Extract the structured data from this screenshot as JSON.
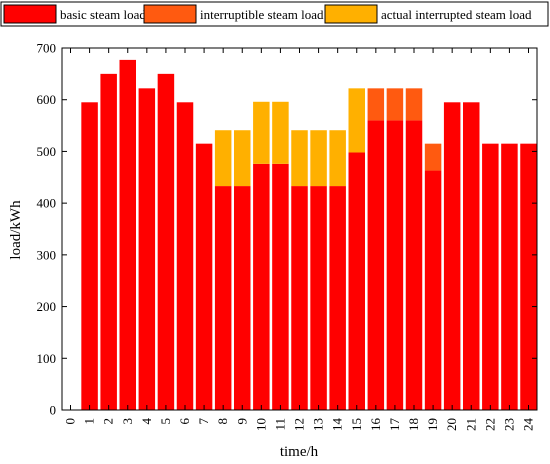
{
  "chart_data": {
    "type": "bar",
    "stacked": true,
    "title": "",
    "xlabel": "time/h",
    "ylabel": "load/kWh",
    "ylim": [
      0,
      700
    ],
    "yticks": [
      0,
      100,
      200,
      300,
      400,
      500,
      600,
      700
    ],
    "xticks": [
      0,
      1,
      2,
      3,
      4,
      5,
      6,
      7,
      8,
      9,
      10,
      11,
      12,
      13,
      14,
      15,
      16,
      17,
      18,
      19,
      20,
      21,
      22,
      23,
      24
    ],
    "xlim": [
      0,
      24
    ],
    "grid": false,
    "legend_position": "top",
    "categories": [
      1,
      2,
      3,
      4,
      5,
      6,
      7,
      8,
      9,
      10,
      11,
      12,
      13,
      14,
      15,
      16,
      17,
      18,
      19,
      20,
      21,
      22,
      23,
      24
    ],
    "series": [
      {
        "name": "basic steam load",
        "color": "#ff0000",
        "values": [
          595,
          650,
          677,
          622,
          650,
          595,
          515,
          433,
          433,
          476,
          476,
          433,
          433,
          433,
          498,
          560,
          560,
          560,
          463,
          595,
          595,
          515,
          515,
          515
        ]
      },
      {
        "name": "interruptible steam load",
        "color": "#ff5a10",
        "values": [
          0,
          0,
          0,
          0,
          0,
          0,
          0,
          0,
          0,
          0,
          0,
          0,
          0,
          0,
          0,
          62,
          62,
          62,
          52,
          0,
          0,
          0,
          0,
          0
        ]
      },
      {
        "name": "actual interrupted steam load",
        "color": "#ffb000",
        "values": [
          0,
          0,
          0,
          0,
          0,
          0,
          0,
          108,
          108,
          120,
          120,
          108,
          108,
          108,
          124,
          0,
          0,
          0,
          0,
          0,
          0,
          0,
          0,
          0
        ]
      }
    ]
  }
}
